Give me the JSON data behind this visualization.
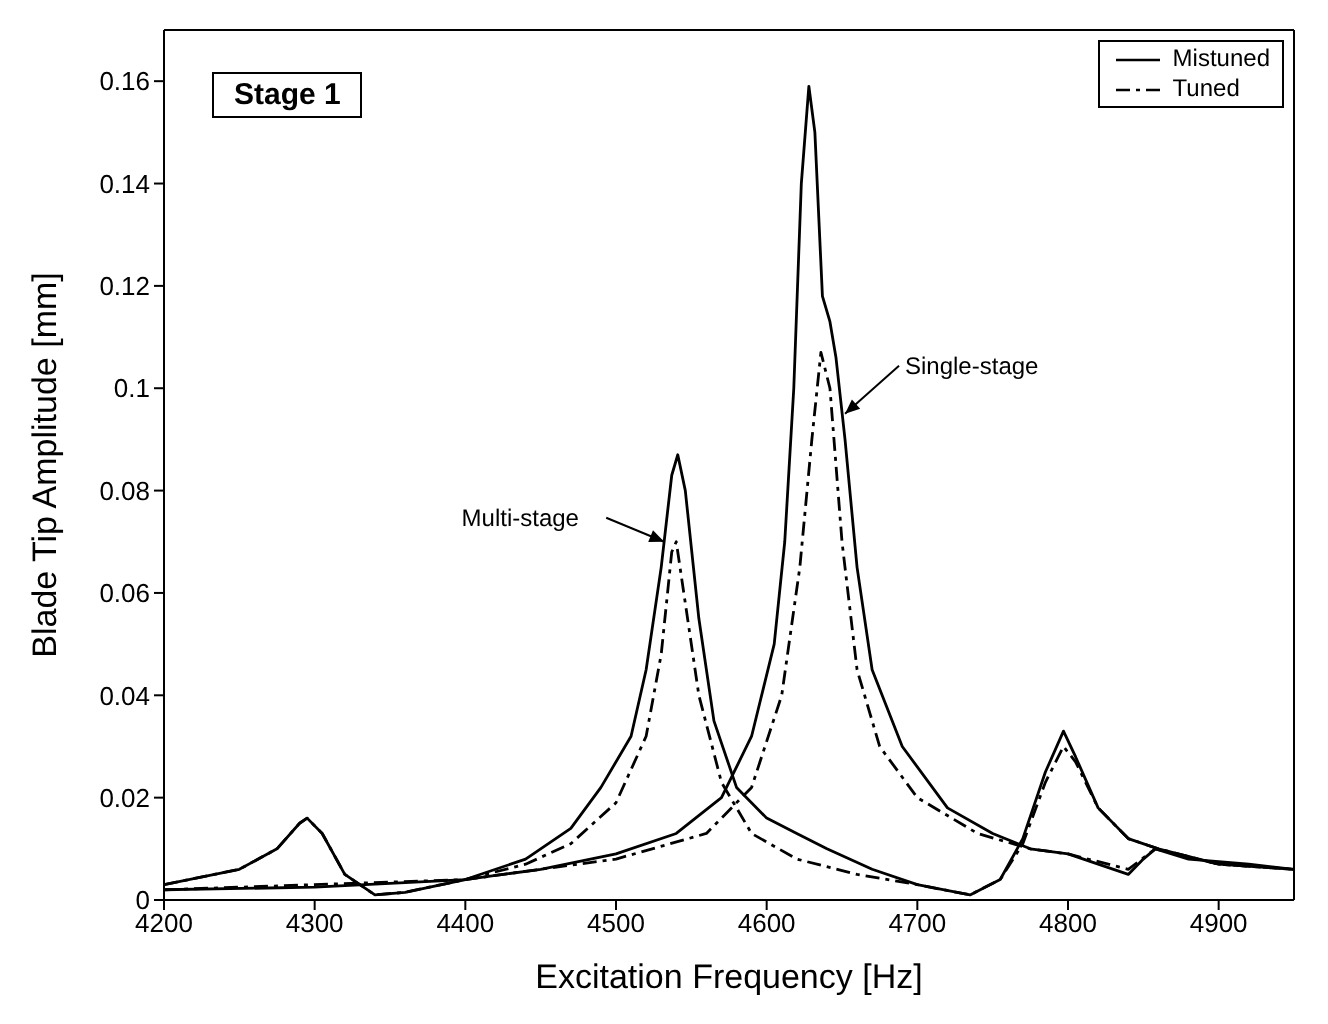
{
  "chart_data": {
    "type": "line",
    "xlabel": "Excitation Frequency  [Hz]",
    "ylabel": "Blade Tip Amplitude  [mm]",
    "xlim": [
      4200,
      4950
    ],
    "xticks": [
      4200,
      4300,
      4400,
      4500,
      4600,
      4700,
      4800,
      4900
    ],
    "ylim": [
      0,
      0.17
    ],
    "yticks": [
      0,
      0.02,
      0.04,
      0.06,
      0.08,
      0.1,
      0.12,
      0.14,
      0.16
    ],
    "grid": false,
    "legend": "top right",
    "marker": "none",
    "annotations": [
      "Stage 1",
      {
        "text": "Multi-stage",
        "x": 4532,
        "y": 0.07
      },
      {
        "text": "Single-stage",
        "x": 4652,
        "y": 0.095
      }
    ],
    "series": [
      {
        "name": "Mistuned",
        "color": "#000000",
        "line_style": "solid",
        "x": [
          4200,
          4250,
          4275,
          4290,
          4295,
          4305,
          4320,
          4340,
          4360,
          4400,
          4440,
          4470,
          4490,
          4510,
          4520,
          4530,
          4537,
          4541,
          4546,
          4555,
          4565,
          4580,
          4600,
          4620,
          4640,
          4670,
          4700,
          4735,
          4755,
          4770,
          4785,
          4797,
          4805,
          4820,
          4840,
          4860,
          4900,
          4950
        ],
        "values": [
          0.003,
          0.006,
          0.01,
          0.015,
          0.016,
          0.013,
          0.005,
          0.001,
          0.0015,
          0.004,
          0.008,
          0.014,
          0.022,
          0.032,
          0.045,
          0.065,
          0.083,
          0.087,
          0.08,
          0.055,
          0.035,
          0.022,
          0.016,
          0.013,
          0.01,
          0.006,
          0.003,
          0.001,
          0.004,
          0.012,
          0.025,
          0.033,
          0.028,
          0.018,
          0.012,
          0.01,
          0.007,
          0.006
        ]
      },
      {
        "name": "Tuned",
        "color": "#000000",
        "line_style": "dashed",
        "x": [
          4200,
          4250,
          4275,
          4290,
          4295,
          4305,
          4320,
          4340,
          4360,
          4400,
          4440,
          4470,
          4500,
          4520,
          4530,
          4537,
          4540,
          4545,
          4555,
          4570,
          4590,
          4620,
          4660,
          4700,
          4735,
          4755,
          4770,
          4785,
          4797,
          4805,
          4820,
          4840,
          4860,
          4900,
          4950
        ],
        "values": [
          0.003,
          0.006,
          0.01,
          0.015,
          0.016,
          0.013,
          0.005,
          0.001,
          0.0015,
          0.004,
          0.007,
          0.011,
          0.019,
          0.032,
          0.048,
          0.068,
          0.07,
          0.06,
          0.04,
          0.023,
          0.013,
          0.008,
          0.005,
          0.003,
          0.001,
          0.004,
          0.011,
          0.023,
          0.03,
          0.027,
          0.018,
          0.012,
          0.01,
          0.007,
          0.006
        ]
      },
      {
        "color": "#000000",
        "line_style": "solid",
        "x": [
          4200,
          4300,
          4400,
          4450,
          4500,
          4540,
          4570,
          4590,
          4605,
          4612,
          4618,
          4623,
          4628,
          4632,
          4637,
          4642,
          4646,
          4652,
          4660,
          4670,
          4690,
          4720,
          4750,
          4775,
          4800,
          4820,
          4840,
          4850,
          4858,
          4880,
          4920,
          4950
        ],
        "values": [
          0.002,
          0.0025,
          0.004,
          0.006,
          0.009,
          0.013,
          0.02,
          0.032,
          0.05,
          0.07,
          0.1,
          0.14,
          0.159,
          0.15,
          0.118,
          0.113,
          0.106,
          0.09,
          0.065,
          0.045,
          0.03,
          0.018,
          0.013,
          0.01,
          0.009,
          0.007,
          0.005,
          0.008,
          0.01,
          0.008,
          0.007,
          0.006
        ]
      },
      {
        "color": "#000000",
        "line_style": "dashed",
        "x": [
          4200,
          4400,
          4500,
          4560,
          4590,
          4610,
          4622,
          4630,
          4636,
          4642,
          4650,
          4660,
          4675,
          4700,
          4740,
          4775,
          4800,
          4840,
          4858,
          4900,
          4950
        ],
        "values": [
          0.002,
          0.004,
          0.008,
          0.013,
          0.022,
          0.04,
          0.065,
          0.09,
          0.107,
          0.1,
          0.07,
          0.045,
          0.03,
          0.02,
          0.013,
          0.01,
          0.009,
          0.006,
          0.01,
          0.007,
          0.006
        ]
      }
    ]
  }
}
